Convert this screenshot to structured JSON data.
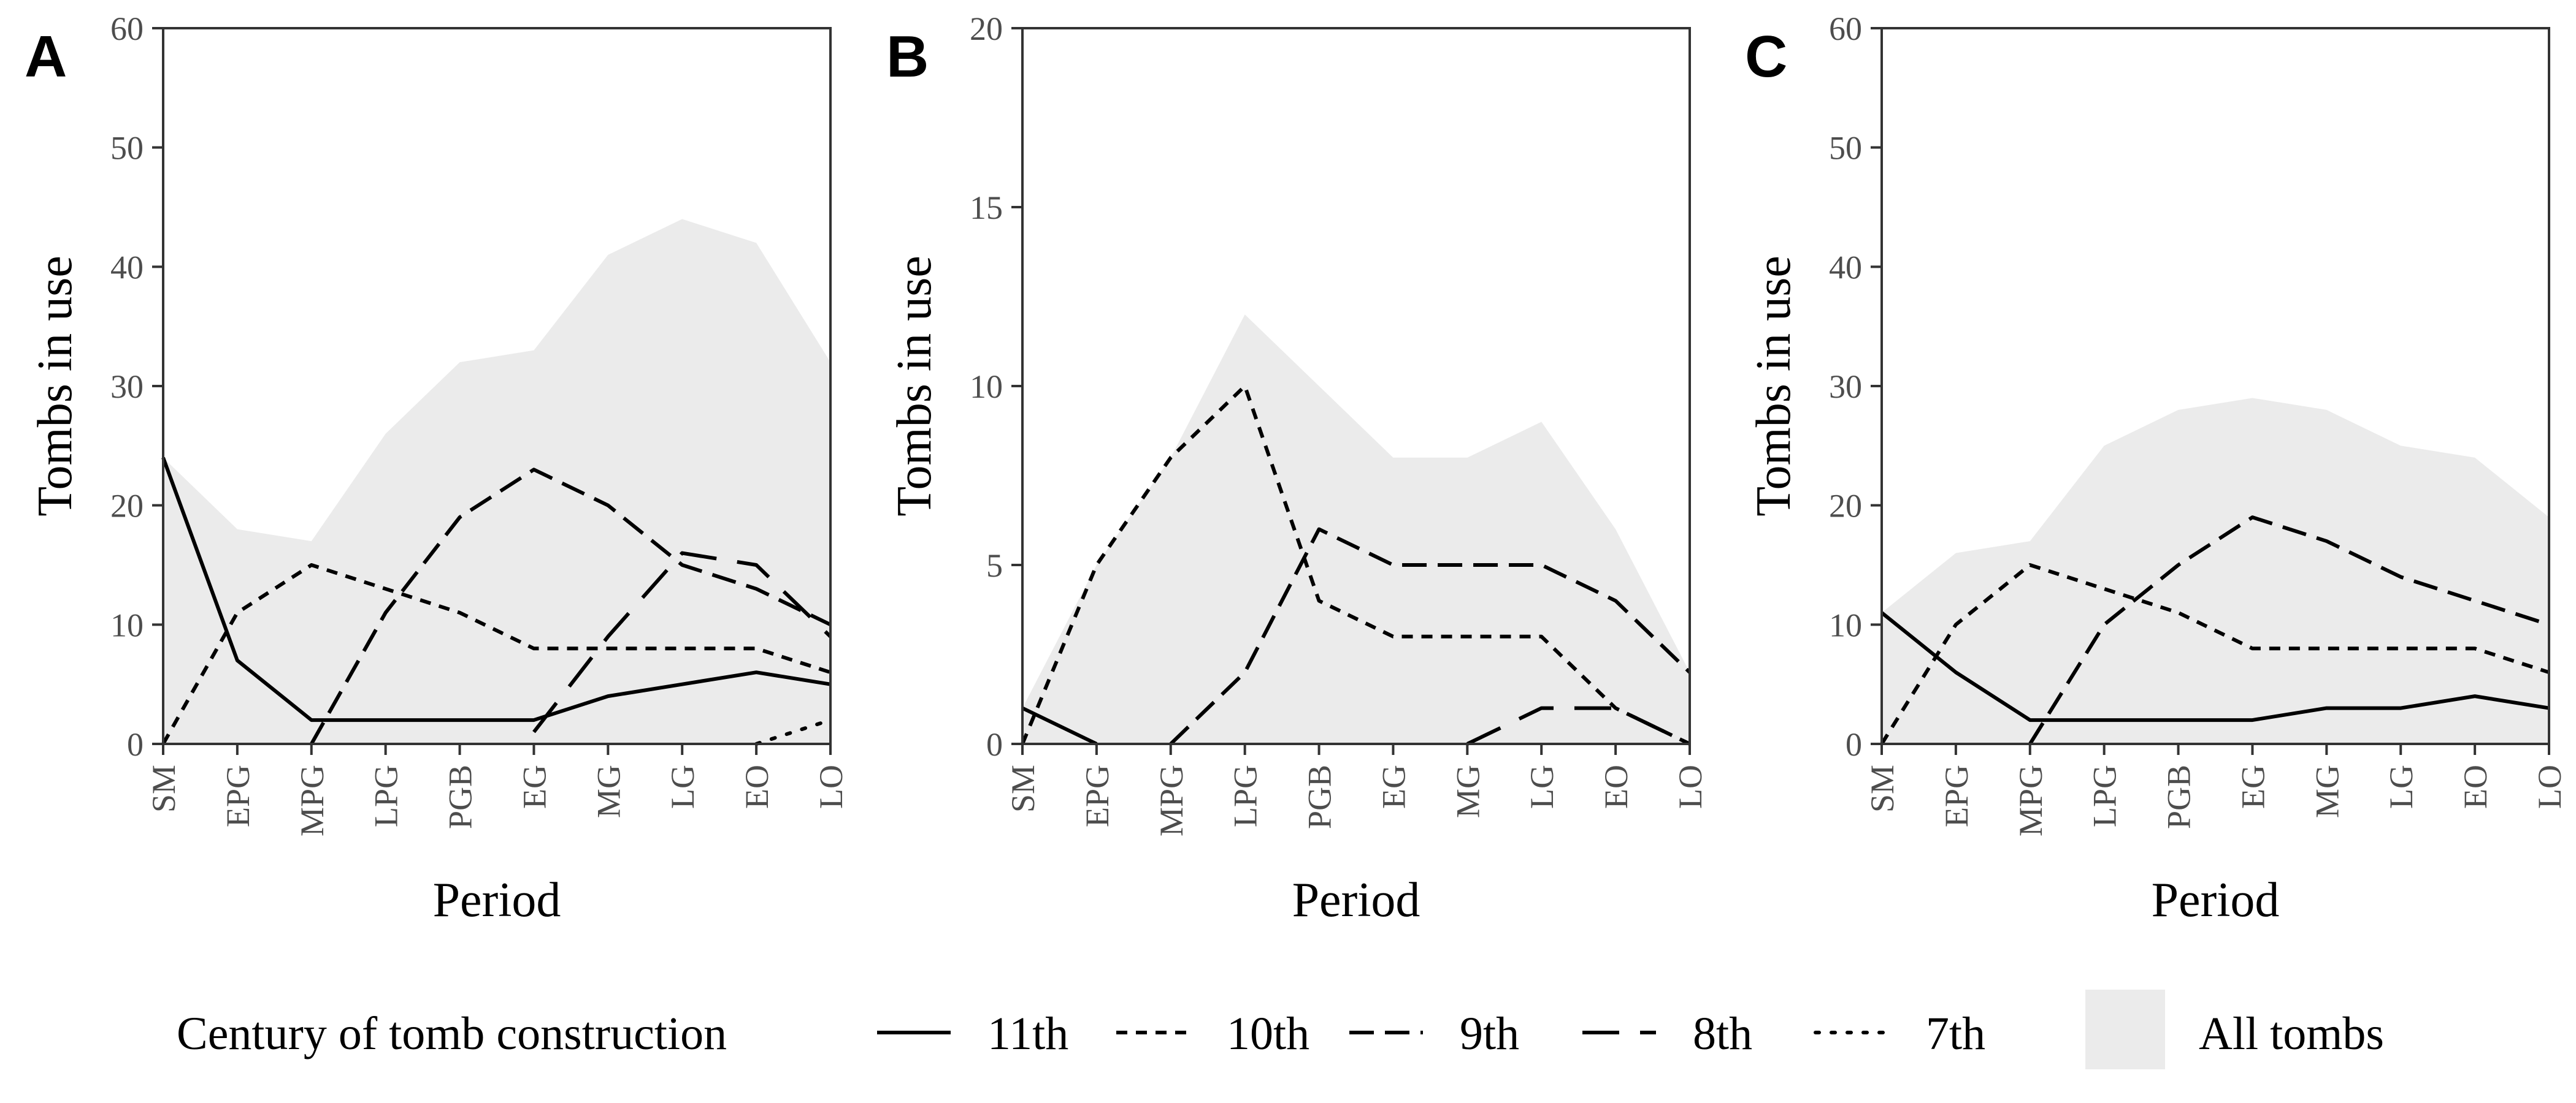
{
  "chart_data": [
    {
      "type": "line",
      "panel": "A",
      "xlabel": "Period",
      "ylabel": "Tombs in use",
      "categories": [
        "SM",
        "EPG",
        "MPG",
        "LPG",
        "PGB",
        "EG",
        "MG",
        "LG",
        "EO",
        "LO"
      ],
      "ylim": [
        0,
        60
      ],
      "yticks": [
        0,
        10,
        20,
        30,
        40,
        50,
        60
      ],
      "area": {
        "name": "All tombs",
        "values": [
          24,
          18,
          17,
          26,
          32,
          33,
          41,
          44,
          42,
          32
        ]
      },
      "series": [
        {
          "name": "11th",
          "values": [
            24,
            7,
            2,
            2,
            2,
            2,
            4,
            5,
            6,
            5
          ]
        },
        {
          "name": "10th",
          "values": [
            0,
            11,
            15,
            13,
            11,
            8,
            8,
            8,
            8,
            6
          ]
        },
        {
          "name": "9th",
          "values": [
            null,
            null,
            0,
            11,
            19,
            23,
            20,
            15,
            13,
            10
          ]
        },
        {
          "name": "8th",
          "values": [
            null,
            null,
            null,
            null,
            null,
            1,
            9,
            16,
            15,
            9
          ]
        },
        {
          "name": "7th",
          "values": [
            null,
            null,
            null,
            null,
            null,
            null,
            null,
            null,
            0,
            2
          ]
        }
      ]
    },
    {
      "type": "line",
      "panel": "B",
      "xlabel": "Period",
      "ylabel": "Tombs in use",
      "categories": [
        "SM",
        "EPG",
        "MPG",
        "LPG",
        "PGB",
        "EG",
        "MG",
        "LG",
        "EO",
        "LO"
      ],
      "ylim": [
        0,
        20
      ],
      "yticks": [
        0,
        5,
        10,
        15,
        20
      ],
      "area": {
        "name": "All tombs",
        "values": [
          1,
          5,
          8,
          12,
          10,
          8,
          8,
          9,
          6,
          2
        ]
      },
      "series": [
        {
          "name": "11th",
          "values": [
            1,
            0,
            null,
            null,
            null,
            null,
            null,
            null,
            null,
            null
          ]
        },
        {
          "name": "10th",
          "values": [
            0,
            5,
            8,
            10,
            4,
            3,
            3,
            3,
            1,
            0
          ]
        },
        {
          "name": "9th",
          "values": [
            null,
            null,
            0,
            2,
            6,
            5,
            5,
            5,
            4,
            2
          ]
        },
        {
          "name": "8th",
          "values": [
            null,
            null,
            null,
            null,
            null,
            null,
            0,
            1,
            1,
            0
          ]
        },
        {
          "name": "7th",
          "values": [
            null,
            null,
            null,
            null,
            null,
            null,
            null,
            null,
            null,
            null
          ]
        }
      ]
    },
    {
      "type": "line",
      "panel": "C",
      "xlabel": "Period",
      "ylabel": "Tombs in use",
      "categories": [
        "SM",
        "EPG",
        "MPG",
        "LPG",
        "PGB",
        "EG",
        "MG",
        "LG",
        "EO",
        "LO"
      ],
      "ylim": [
        0,
        60
      ],
      "yticks": [
        0,
        10,
        20,
        30,
        40,
        50,
        60
      ],
      "area": {
        "name": "All tombs",
        "values": [
          11,
          16,
          17,
          25,
          28,
          29,
          28,
          25,
          24,
          19
        ]
      },
      "series": [
        {
          "name": "11th",
          "values": [
            11,
            6,
            2,
            2,
            2,
            2,
            3,
            3,
            4,
            3
          ]
        },
        {
          "name": "10th",
          "values": [
            0,
            10,
            15,
            13,
            11,
            8,
            8,
            8,
            8,
            6
          ]
        },
        {
          "name": "9th",
          "values": [
            null,
            null,
            0,
            10,
            15,
            19,
            17,
            14,
            12,
            10
          ]
        },
        {
          "name": "8th",
          "values": [
            null,
            null,
            null,
            null,
            null,
            null,
            null,
            null,
            null,
            null
          ]
        },
        {
          "name": "7th",
          "values": [
            null,
            null,
            null,
            null,
            null,
            null,
            null,
            null,
            null,
            null
          ]
        }
      ]
    }
  ],
  "legend": {
    "title": "Century of tomb construction",
    "items": [
      {
        "label": "11th",
        "dash": "solid"
      },
      {
        "label": "10th",
        "dash": "short-dash"
      },
      {
        "label": "9th",
        "dash": "long-dash"
      },
      {
        "label": "8th",
        "dash": "longer-dash"
      },
      {
        "label": "7th",
        "dash": "dotted"
      }
    ],
    "area_label": "All tombs"
  },
  "colors": {
    "area": "#ebebeb",
    "line": "#000000",
    "axis": "#333333",
    "tick_label": "#4d4d4d"
  }
}
